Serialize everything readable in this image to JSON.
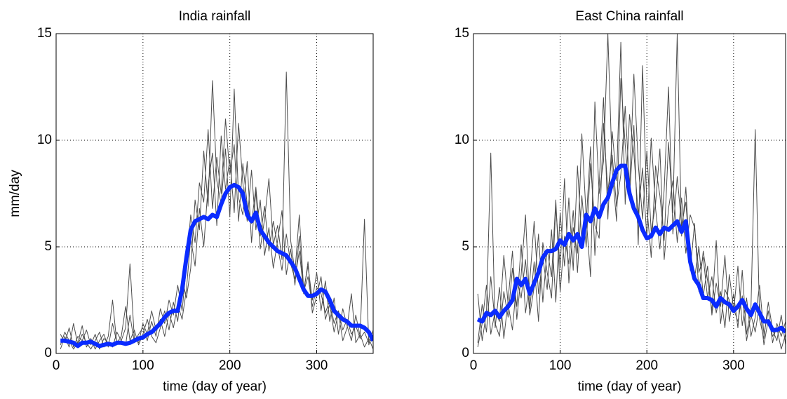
{
  "chart_data": [
    {
      "type": "line",
      "title": "India rainfall",
      "xlabel": "time (day of year)",
      "ylabel": "mm/day",
      "x": [
        5,
        10,
        15,
        20,
        25,
        30,
        35,
        40,
        45,
        50,
        55,
        60,
        65,
        70,
        75,
        80,
        85,
        90,
        95,
        100,
        105,
        110,
        115,
        120,
        125,
        130,
        135,
        140,
        145,
        150,
        155,
        160,
        165,
        170,
        175,
        180,
        185,
        190,
        195,
        200,
        205,
        210,
        215,
        220,
        225,
        230,
        235,
        240,
        245,
        250,
        255,
        260,
        265,
        270,
        275,
        280,
        285,
        290,
        295,
        300,
        305,
        310,
        315,
        320,
        325,
        330,
        335,
        340,
        345,
        350,
        355,
        360,
        365
      ],
      "xlim": [
        0,
        365
      ],
      "ylim": [
        0,
        15
      ],
      "xticks": [
        0,
        100,
        200,
        300
      ],
      "yticks": [
        0,
        5,
        10,
        15
      ],
      "grid": true,
      "series": [
        {
          "color": "#4d4d4d",
          "values": [
            0.9,
            0.5,
            1.2,
            0.3,
            0.8,
            0.6,
            1.1,
            0.4,
            0.9,
            0.2,
            0.7,
            0.5,
            0.3,
            1.0,
            0.6,
            0.4,
            1.8,
            0.5,
            0.9,
            1.2,
            0.6,
            1.5,
            0.8,
            2.1,
            1.4,
            2.5,
            1.8,
            3.2,
            2.0,
            4.1,
            6.5,
            5.2,
            8.0,
            7.1,
            10.5,
            6.8,
            9.2,
            7.5,
            11.0,
            8.4,
            9.8,
            6.2,
            8.9,
            7.0,
            6.1,
            7.8,
            5.5,
            6.9,
            4.8,
            6.2,
            5.0,
            3.9,
            5.6,
            4.2,
            3.5,
            4.8,
            2.9,
            3.6,
            2.2,
            3.1,
            2.8,
            1.9,
            2.5,
            1.4,
            2.0,
            1.1,
            1.6,
            0.9,
            1.3,
            0.7,
            1.0,
            0.5,
            0.8
          ]
        },
        {
          "color": "#4d4d4d",
          "values": [
            0.4,
            1.0,
            0.6,
            0.2,
            0.5,
            1.3,
            0.3,
            0.7,
            0.2,
            0.6,
            0.9,
            0.3,
            1.4,
            0.5,
            0.8,
            2.2,
            0.6,
            1.1,
            0.4,
            0.9,
            1.6,
            0.8,
            0.5,
            1.2,
            2.0,
            1.1,
            2.4,
            1.5,
            3.5,
            2.6,
            4.0,
            7.2,
            5.8,
            9.5,
            6.9,
            12.8,
            8.1,
            7.0,
            9.6,
            6.4,
            12.4,
            7.3,
            6.5,
            9.0,
            5.2,
            7.6,
            4.9,
            6.3,
            8.2,
            5.1,
            6.0,
            4.4,
            13.2,
            5.3,
            3.8,
            6.5,
            3.0,
            4.1,
            2.5,
            3.8,
            2.0,
            3.4,
            1.5,
            2.6,
            0.9,
            2.1,
            1.3,
            0.6,
            1.8,
            0.8,
            6.3,
            0.4,
            1.1
          ]
        },
        {
          "color": "#4d4d4d",
          "values": [
            0.2,
            0.8,
            0.3,
            1.4,
            0.4,
            0.9,
            0.5,
            0.2,
            0.6,
            1.0,
            0.3,
            0.8,
            2.5,
            0.4,
            0.6,
            1.2,
            4.2,
            0.7,
            0.5,
            1.4,
            0.9,
            2.0,
            1.1,
            1.6,
            0.8,
            1.9,
            1.2,
            2.3,
            1.6,
            3.0,
            5.4,
            4.1,
            6.8,
            5.0,
            7.9,
            9.4,
            6.0,
            10.2,
            7.7,
            9.1,
            6.6,
            10.8,
            8.0,
            6.2,
            8.6,
            5.8,
            7.2,
            4.6,
            5.9,
            4.0,
            5.3,
            6.7,
            3.7,
            4.9,
            3.2,
            5.5,
            2.8,
            4.3,
            1.9,
            2.7,
            3.6,
            1.6,
            2.3,
            1.0,
            1.9,
            0.6,
            1.2,
            2.8,
            0.5,
            0.9,
            0.3,
            0.7,
            0.2
          ]
        },
        {
          "color": "#0a2bff",
          "values": [
            0.6,
            0.6,
            0.55,
            0.5,
            0.35,
            0.5,
            0.5,
            0.55,
            0.45,
            0.35,
            0.4,
            0.45,
            0.4,
            0.5,
            0.5,
            0.45,
            0.5,
            0.6,
            0.7,
            0.75,
            0.9,
            1.0,
            1.2,
            1.4,
            1.7,
            1.9,
            2.0,
            2.0,
            3.0,
            4.5,
            5.8,
            6.2,
            6.3,
            6.4,
            6.3,
            6.5,
            6.4,
            7.0,
            7.5,
            7.8,
            7.9,
            7.8,
            7.5,
            6.5,
            6.2,
            6.6,
            5.8,
            5.5,
            5.2,
            5.0,
            4.8,
            4.7,
            4.6,
            4.3,
            4.0,
            3.5,
            3.0,
            2.7,
            2.7,
            2.8,
            3.0,
            2.9,
            2.5,
            2.0,
            1.8,
            1.6,
            1.5,
            1.3,
            1.3,
            1.3,
            1.2,
            1.0,
            0.6
          ]
        }
      ]
    },
    {
      "type": "line",
      "title": "East China rainfall",
      "xlabel": "time (day of year)",
      "x": [
        5,
        10,
        15,
        20,
        25,
        30,
        35,
        40,
        45,
        50,
        55,
        60,
        65,
        70,
        75,
        80,
        85,
        90,
        95,
        100,
        105,
        110,
        115,
        120,
        125,
        130,
        135,
        140,
        145,
        150,
        155,
        160,
        165,
        170,
        175,
        180,
        185,
        190,
        195,
        200,
        205,
        210,
        215,
        220,
        225,
        230,
        235,
        240,
        245,
        250,
        255,
        260,
        265,
        270,
        275,
        280,
        285,
        290,
        295,
        300,
        305,
        310,
        315,
        320,
        325,
        330,
        335,
        340,
        345,
        350,
        355,
        360
      ],
      "xlim": [
        0,
        360
      ],
      "ylim": [
        0,
        15
      ],
      "xticks": [
        0,
        100,
        200,
        300
      ],
      "yticks": [
        0,
        5,
        10,
        15
      ],
      "grid": true,
      "series": [
        {
          "color": "#4d4d4d",
          "values": [
            0.5,
            2.3,
            1.0,
            3.6,
            1.4,
            0.8,
            2.9,
            1.7,
            4.0,
            2.2,
            5.1,
            1.9,
            3.4,
            6.2,
            2.8,
            4.5,
            3.0,
            5.8,
            2.4,
            6.6,
            4.1,
            7.3,
            3.9,
            8.8,
            5.2,
            6.1,
            9.7,
            4.6,
            7.9,
            12.0,
            6.3,
            10.4,
            8.1,
            14.6,
            7.0,
            11.2,
            9.4,
            6.5,
            8.7,
            5.4,
            10.1,
            6.8,
            4.9,
            7.7,
            12.5,
            5.6,
            8.3,
            6.0,
            7.1,
            4.2,
            3.5,
            5.0,
            2.7,
            4.1,
            1.8,
            3.3,
            2.2,
            4.6,
            1.5,
            2.8,
            1.2,
            3.9,
            0.9,
            2.1,
            10.5,
            1.6,
            0.7,
            2.4,
            1.1,
            0.6,
            1.8,
            0.4
          ]
        },
        {
          "color": "#4d4d4d",
          "values": [
            2.8,
            0.6,
            1.9,
            9.4,
            1.2,
            3.1,
            0.7,
            2.5,
            4.8,
            1.6,
            3.7,
            6.5,
            2.1,
            4.3,
            1.5,
            5.2,
            3.8,
            2.6,
            6.9,
            4.0,
            8.2,
            3.3,
            5.9,
            4.7,
            10.3,
            6.4,
            3.6,
            11.8,
            7.5,
            9.0,
            15.0,
            8.6,
            6.2,
            12.9,
            9.8,
            7.3,
            10.7,
            5.1,
            13.5,
            6.9,
            4.5,
            8.8,
            7.4,
            5.3,
            9.9,
            6.6,
            15.0,
            5.5,
            7.8,
            3.9,
            6.1,
            2.9,
            4.8,
            3.4,
            2.0,
            5.3,
            1.4,
            3.0,
            2.5,
            1.9,
            4.1,
            1.3,
            2.6,
            0.8,
            1.7,
            3.2,
            0.9,
            2.0,
            0.5,
            1.4,
            0.8,
            1.5
          ]
        },
        {
          "color": "#4d4d4d",
          "values": [
            0.3,
            1.4,
            3.2,
            0.9,
            2.0,
            1.5,
            4.6,
            2.3,
            1.1,
            3.5,
            2.6,
            4.4,
            1.8,
            3.1,
            5.6,
            2.4,
            4.9,
            3.6,
            7.2,
            2.9,
            5.5,
            4.2,
            6.7,
            3.8,
            7.4,
            5.0,
            8.9,
            6.0,
            5.4,
            10.8,
            7.6,
            9.3,
            6.9,
            8.4,
            11.6,
            7.8,
            13.1,
            8.9,
            6.3,
            9.5,
            5.7,
            7.0,
            9.6,
            4.4,
            6.8,
            8.1,
            5.2,
            7.3,
            4.7,
            6.5,
            5.9,
            3.8,
            4.5,
            2.6,
            3.6,
            1.9,
            2.9,
            1.2,
            3.7,
            2.1,
            1.5,
            2.7,
            0.6,
            1.8,
            1.0,
            2.3,
            0.4,
            1.6,
            0.8,
            1.2,
            0.2,
            0.9
          ]
        },
        {
          "color": "#0a2bff",
          "values": [
            1.6,
            1.5,
            1.9,
            1.8,
            2.0,
            1.7,
            2.0,
            2.2,
            2.5,
            3.5,
            3.2,
            3.5,
            2.8,
            3.3,
            3.8,
            4.5,
            4.8,
            4.8,
            4.9,
            5.3,
            5.1,
            5.6,
            5.3,
            5.6,
            5.0,
            6.5,
            6.2,
            6.8,
            6.4,
            7.0,
            7.3,
            8.0,
            8.6,
            8.8,
            8.8,
            7.5,
            6.8,
            6.4,
            5.8,
            5.4,
            5.5,
            5.9,
            5.6,
            5.9,
            5.8,
            6.0,
            6.2,
            5.7,
            6.2,
            4.3,
            3.5,
            3.2,
            2.6,
            2.6,
            2.5,
            2.2,
            2.6,
            2.4,
            2.3,
            2.0,
            2.2,
            2.5,
            2.1,
            1.8,
            2.3,
            1.9,
            1.5,
            1.5,
            1.1,
            1.1,
            1.2,
            1.0
          ]
        }
      ]
    }
  ]
}
